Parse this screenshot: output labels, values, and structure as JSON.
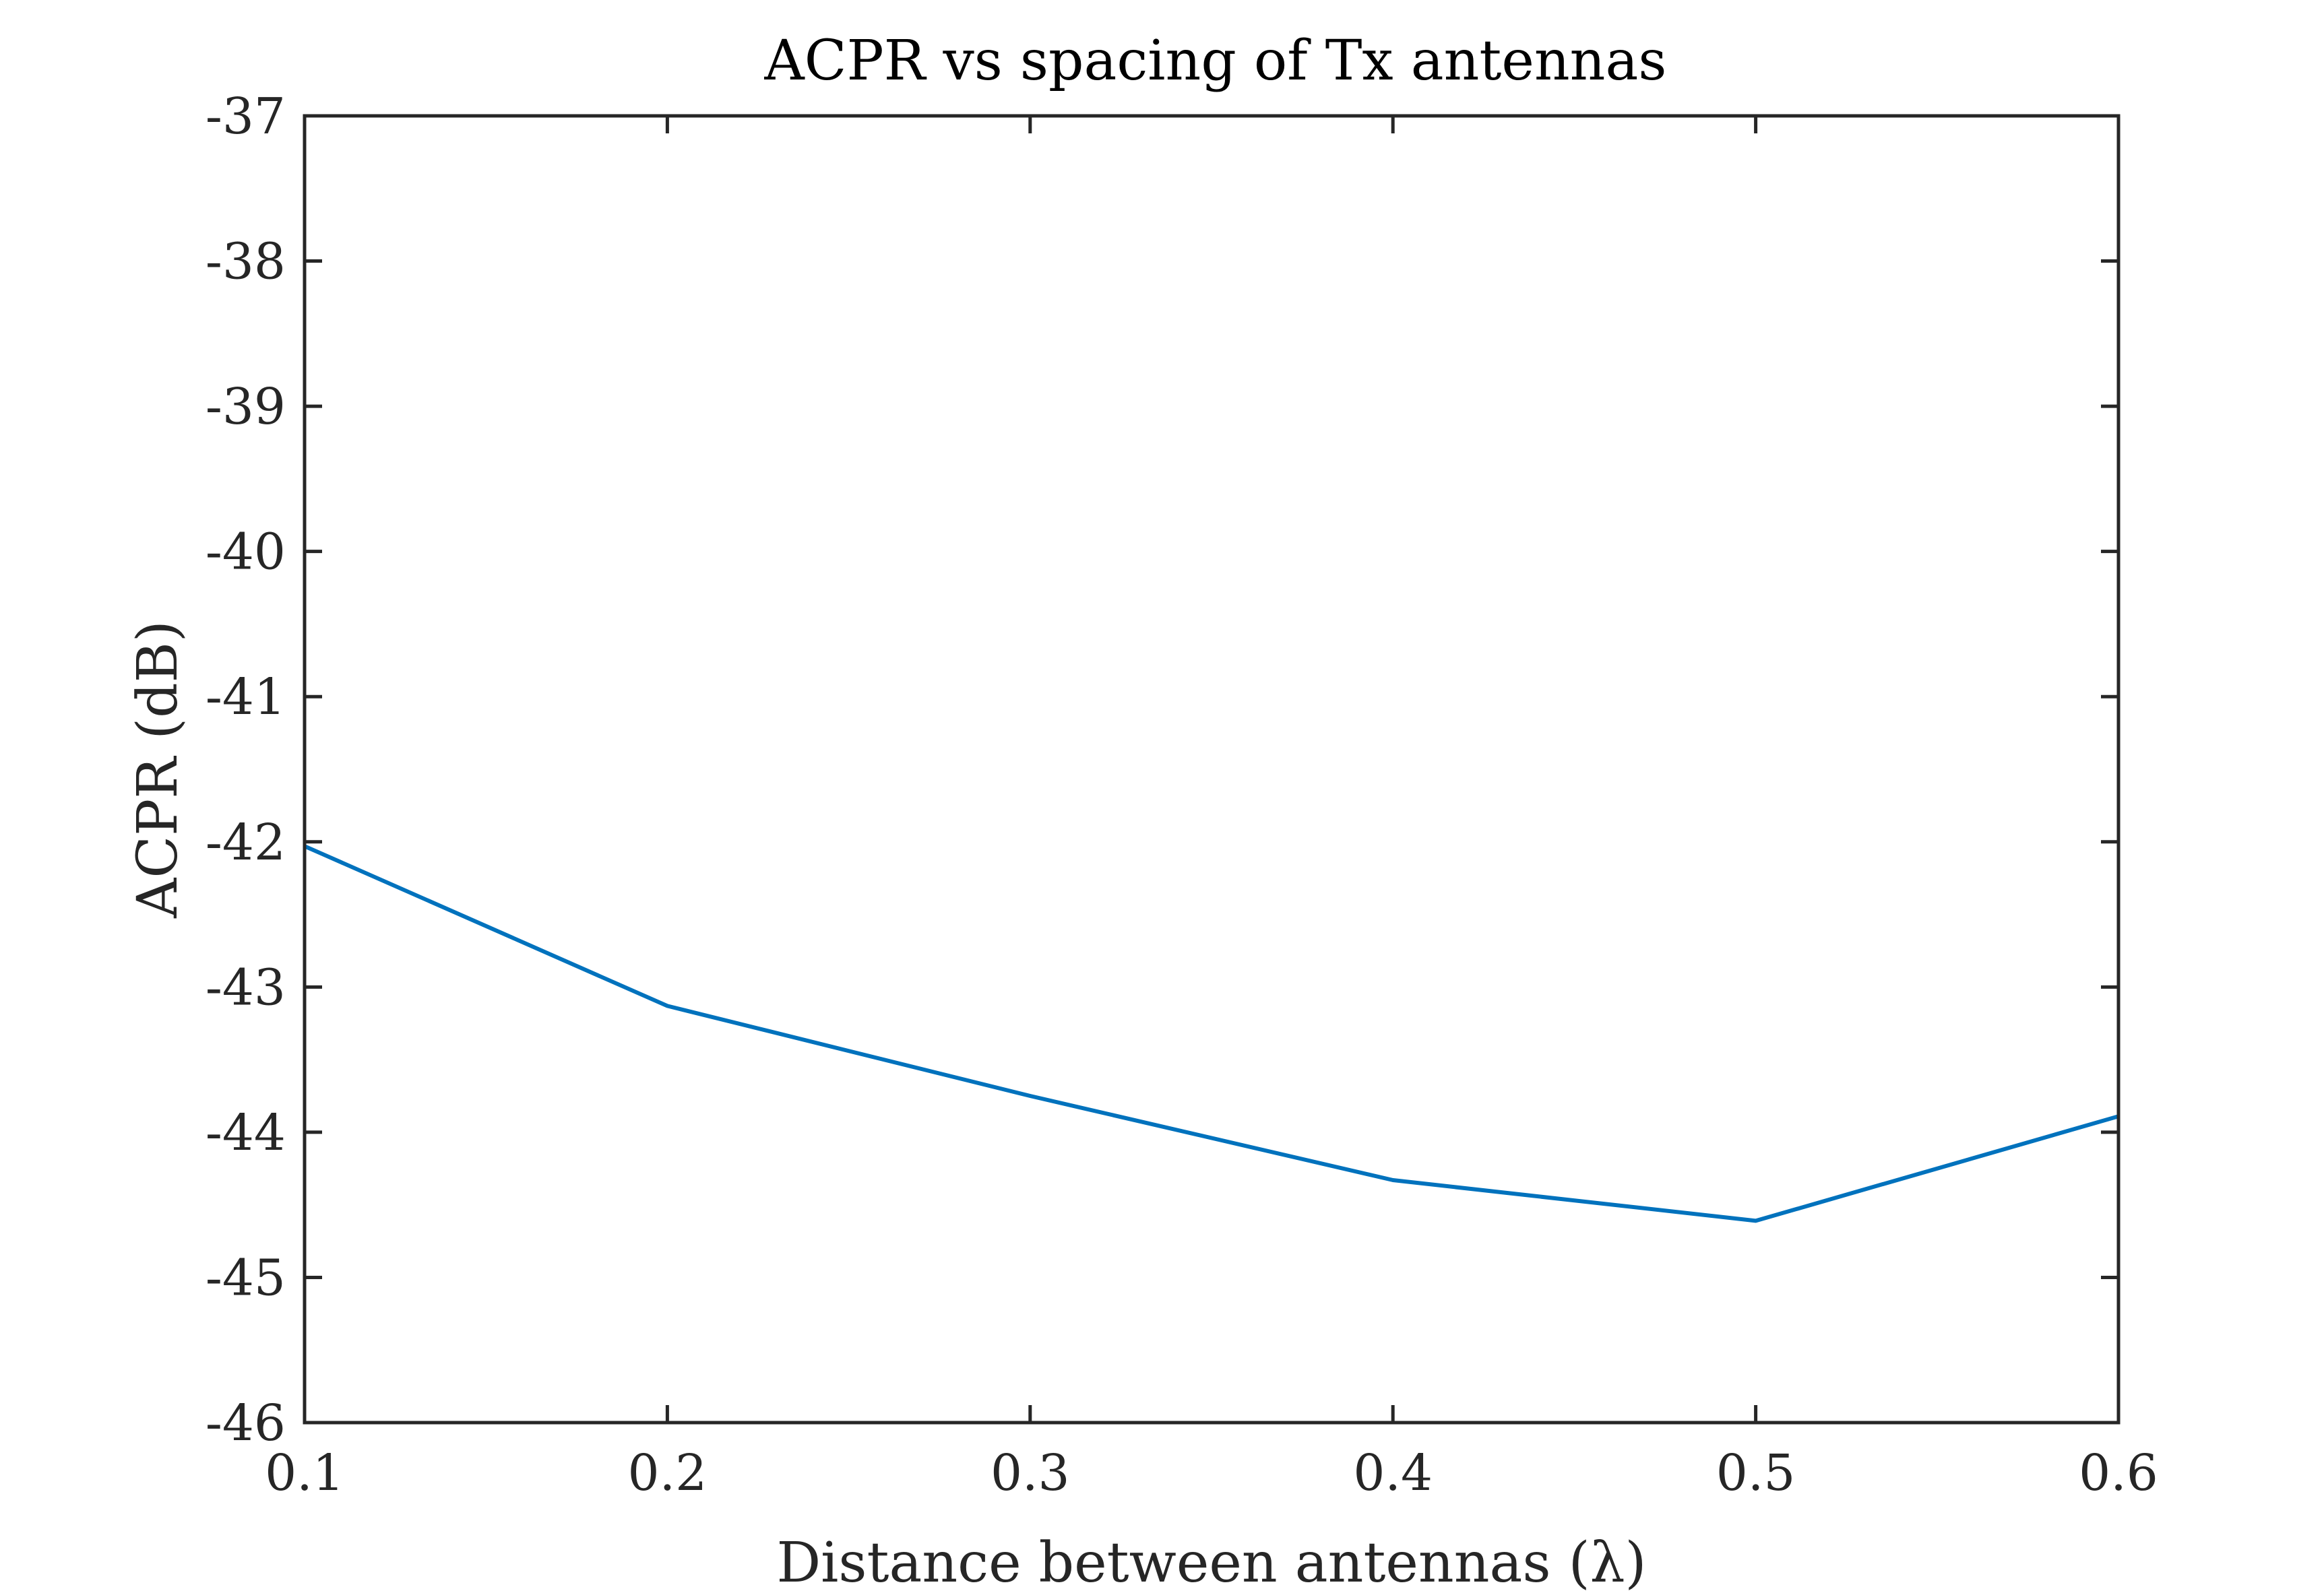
{
  "chart_data": {
    "type": "line",
    "title": "ACPR vs spacing of Tx antennas",
    "xlabel": "Distance between antennas (λ)",
    "ylabel": "ACPR (dB)",
    "xlim": [
      0.1,
      0.6
    ],
    "ylim": [
      -46,
      -37
    ],
    "xticks": [
      0.1,
      0.2,
      0.3,
      0.4,
      0.5,
      0.6
    ],
    "xtick_labels": [
      "0.1",
      "0.2",
      "0.3",
      "0.4",
      "0.5",
      "0.6"
    ],
    "yticks": [
      -37,
      -38,
      -39,
      -40,
      -41,
      -42,
      -43,
      -44,
      -45,
      -46
    ],
    "ytick_labels": [
      "-37",
      "-38",
      "-39",
      "-40",
      "-41",
      "-42",
      "-43",
      "-44",
      "-45",
      "-46"
    ],
    "grid": false,
    "legend": "none",
    "series": [
      {
        "color": "#0072BD",
        "x": [
          0.1,
          0.2,
          0.3,
          0.4,
          0.5,
          0.6
        ],
        "y": [
          -42.03,
          -43.13,
          -43.75,
          -44.33,
          -44.61,
          -43.89
        ]
      }
    ]
  }
}
